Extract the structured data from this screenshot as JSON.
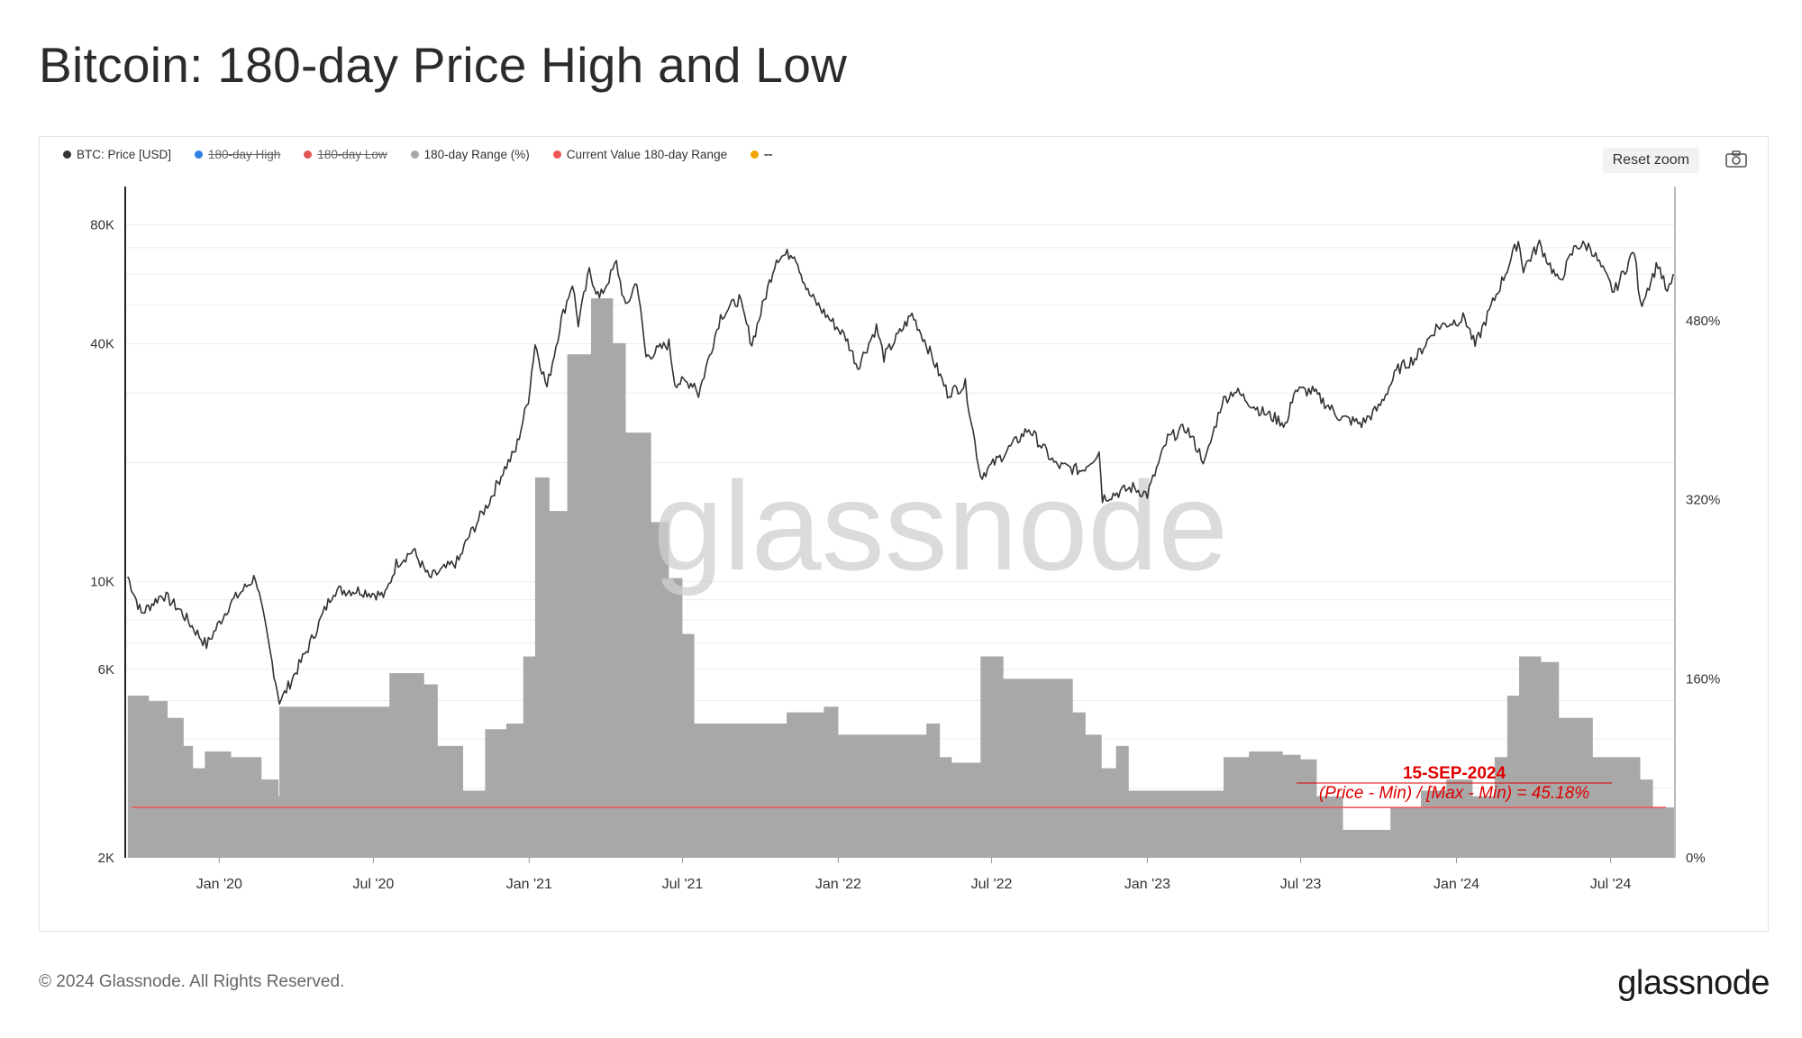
{
  "title": "Bitcoin: 180-day Price High and Low",
  "legend": [
    {
      "label": "BTC: Price [USD]",
      "color": "#333333",
      "struck": false
    },
    {
      "label": "180-day High",
      "color": "#2d7fe0",
      "struck": true
    },
    {
      "label": "180-day Low",
      "color": "#e05555",
      "struck": true
    },
    {
      "label": "180-day Range (%)",
      "color": "#a8a8a8",
      "struck": false
    },
    {
      "label": "Current Value 180-day Range",
      "color": "#ee5555",
      "struck": false
    },
    {
      "label": "--",
      "color": "#f0a500",
      "struck": true
    }
  ],
  "toolbar": {
    "reset_zoom": "Reset zoom"
  },
  "icons": {
    "camera": "camera-icon"
  },
  "watermark": "glassnode",
  "annotation": {
    "date": "15-SEP-2024",
    "formula": "(Price -  Min) / [Max - Min) = 45.18%",
    "color": "#e00000"
  },
  "footer": {
    "copyright": "© 2024 Glassnode. All Rights Reserved.",
    "logo": "glassnode"
  },
  "chart_data": {
    "type": "line",
    "x_ticks": [
      "Jan '20",
      "Jul '20",
      "Jan '21",
      "Jul '21",
      "Jan '22",
      "Jul '22",
      "Jan '23",
      "Jul '23",
      "Jan '24",
      "Jul '24"
    ],
    "y_left": {
      "scale": "log",
      "ticks": [
        "2K",
        "6K",
        "10K",
        "40K",
        "80K"
      ],
      "tick_values": [
        2000,
        6000,
        10000,
        40000,
        80000
      ],
      "range": [
        2000,
        100000
      ]
    },
    "y_right": {
      "ticks": [
        "0%",
        "160%",
        "320%",
        "480%"
      ],
      "tick_values": [
        0,
        160,
        320,
        480
      ],
      "range": [
        0,
        600
      ]
    },
    "series": [
      {
        "name": "BTC: Price [USD]",
        "type": "line",
        "color": "#333333",
        "axis": "left",
        "points": [
          [
            "2019-09-15",
            10300
          ],
          [
            "2019-10-01",
            8300
          ],
          [
            "2019-10-26",
            9300
          ],
          [
            "2019-11-15",
            8500
          ],
          [
            "2019-12-17",
            6900
          ],
          [
            "2020-01-14",
            8800
          ],
          [
            "2020-02-13",
            10300
          ],
          [
            "2020-03-12",
            5000
          ],
          [
            "2020-03-16",
            5100
          ],
          [
            "2020-04-15",
            6800
          ],
          [
            "2020-05-15",
            9500
          ],
          [
            "2020-06-15",
            9500
          ],
          [
            "2020-07-15",
            9200
          ],
          [
            "2020-07-28",
            11100
          ],
          [
            "2020-08-17",
            12000
          ],
          [
            "2020-09-05",
            10200
          ],
          [
            "2020-10-10",
            11300
          ],
          [
            "2020-10-20",
            12800
          ],
          [
            "2020-11-15",
            16000
          ],
          [
            "2020-12-01",
            19000
          ],
          [
            "2020-12-16",
            21500
          ],
          [
            "2020-12-31",
            29000
          ],
          [
            "2021-01-08",
            40000
          ],
          [
            "2021-01-22",
            31000
          ],
          [
            "2021-02-08",
            46000
          ],
          [
            "2021-02-21",
            57000
          ],
          [
            "2021-02-28",
            45000
          ],
          [
            "2021-03-13",
            61000
          ],
          [
            "2021-03-25",
            52000
          ],
          [
            "2021-04-14",
            64000
          ],
          [
            "2021-04-25",
            49000
          ],
          [
            "2021-05-08",
            58000
          ],
          [
            "2021-05-19",
            37000
          ],
          [
            "2021-06-15",
            40000
          ],
          [
            "2021-06-22",
            32000
          ],
          [
            "2021-07-15",
            31800
          ],
          [
            "2021-07-20",
            29800
          ],
          [
            "2021-08-15",
            47000
          ],
          [
            "2021-09-06",
            52000
          ],
          [
            "2021-09-21",
            40000
          ],
          [
            "2021-10-20",
            66000
          ],
          [
            "2021-11-10",
            68000
          ],
          [
            "2021-11-26",
            54000
          ],
          [
            "2021-12-15",
            48000
          ],
          [
            "2022-01-10",
            41500
          ],
          [
            "2022-01-24",
            35000
          ],
          [
            "2022-02-15",
            44000
          ],
          [
            "2022-02-24",
            37000
          ],
          [
            "2022-03-29",
            47500
          ],
          [
            "2022-04-15",
            40000
          ],
          [
            "2022-05-10",
            30000
          ],
          [
            "2022-05-31",
            31500
          ],
          [
            "2022-06-18",
            18500
          ],
          [
            "2022-07-15",
            21000
          ],
          [
            "2022-08-14",
            24400
          ],
          [
            "2022-09-15",
            19700
          ],
          [
            "2022-10-15",
            19100
          ],
          [
            "2022-11-05",
            21300
          ],
          [
            "2022-11-09",
            16300
          ],
          [
            "2022-12-15",
            17300
          ],
          [
            "2023-01-01",
            16600
          ],
          [
            "2023-01-25",
            23000
          ],
          [
            "2023-02-16",
            24500
          ],
          [
            "2023-03-10",
            20000
          ],
          [
            "2023-03-30",
            28500
          ],
          [
            "2023-04-14",
            30500
          ],
          [
            "2023-05-15",
            27000
          ],
          [
            "2023-06-15",
            25000
          ],
          [
            "2023-06-23",
            30500
          ],
          [
            "2023-07-15",
            30300
          ],
          [
            "2023-08-17",
            26000
          ],
          [
            "2023-09-11",
            25100
          ],
          [
            "2023-10-01",
            27500
          ],
          [
            "2023-10-24",
            34500
          ],
          [
            "2023-11-15",
            37000
          ],
          [
            "2023-12-08",
            44000
          ],
          [
            "2024-01-11",
            46500
          ],
          [
            "2024-01-23",
            39500
          ],
          [
            "2024-02-15",
            52000
          ],
          [
            "2024-03-01",
            62000
          ],
          [
            "2024-03-14",
            73000
          ],
          [
            "2024-03-20",
            62000
          ],
          [
            "2024-04-08",
            71500
          ],
          [
            "2024-05-01",
            57000
          ],
          [
            "2024-05-21",
            71000
          ],
          [
            "2024-06-07",
            70500
          ],
          [
            "2024-07-05",
            54000
          ],
          [
            "2024-07-29",
            69000
          ],
          [
            "2024-08-05",
            50000
          ],
          [
            "2024-08-26",
            64000
          ],
          [
            "2024-09-06",
            53500
          ],
          [
            "2024-09-15",
            60000
          ]
        ]
      },
      {
        "name": "180-day Range (%)",
        "type": "area",
        "color": "#a8a8a8",
        "axis": "right",
        "points": [
          [
            "2019-09-15",
            145
          ],
          [
            "2019-10-10",
            140
          ],
          [
            "2019-11-01",
            125
          ],
          [
            "2019-11-20",
            100
          ],
          [
            "2019-12-01",
            80
          ],
          [
            "2019-12-15",
            95
          ],
          [
            "2020-01-15",
            90
          ],
          [
            "2020-02-20",
            70
          ],
          [
            "2020-03-11",
            55
          ],
          [
            "2020-03-12",
            135
          ],
          [
            "2020-05-15",
            135
          ],
          [
            "2020-07-05",
            135
          ],
          [
            "2020-07-20",
            165
          ],
          [
            "2020-08-30",
            155
          ],
          [
            "2020-09-15",
            100
          ],
          [
            "2020-10-15",
            60
          ],
          [
            "2020-11-10",
            115
          ],
          [
            "2020-12-05",
            120
          ],
          [
            "2020-12-25",
            180
          ],
          [
            "2021-01-08",
            340
          ],
          [
            "2021-01-25",
            310
          ],
          [
            "2021-02-15",
            450
          ],
          [
            "2021-03-15",
            500
          ],
          [
            "2021-04-10",
            460
          ],
          [
            "2021-04-25",
            380
          ],
          [
            "2021-05-25",
            300
          ],
          [
            "2021-06-15",
            250
          ],
          [
            "2021-07-01",
            200
          ],
          [
            "2021-07-15",
            120
          ],
          [
            "2021-08-15",
            120
          ],
          [
            "2021-10-15",
            120
          ],
          [
            "2021-11-01",
            130
          ],
          [
            "2021-12-15",
            135
          ],
          [
            "2022-01-01",
            110
          ],
          [
            "2022-02-15",
            110
          ],
          [
            "2022-04-01",
            110
          ],
          [
            "2022-04-15",
            120
          ],
          [
            "2022-05-01",
            90
          ],
          [
            "2022-05-15",
            85
          ],
          [
            "2022-06-16",
            85
          ],
          [
            "2022-06-18",
            180
          ],
          [
            "2022-07-15",
            160
          ],
          [
            "2022-09-15",
            160
          ],
          [
            "2022-10-05",
            130
          ],
          [
            "2022-10-20",
            110
          ],
          [
            "2022-11-08",
            80
          ],
          [
            "2022-11-25",
            100
          ],
          [
            "2022-12-10",
            60
          ],
          [
            "2023-03-01",
            60
          ],
          [
            "2023-04-01",
            90
          ],
          [
            "2023-05-01",
            95
          ],
          [
            "2023-06-10",
            92
          ],
          [
            "2023-07-01",
            88
          ],
          [
            "2023-07-20",
            55
          ],
          [
            "2023-08-20",
            25
          ],
          [
            "2023-09-20",
            25
          ],
          [
            "2023-10-15",
            45
          ],
          [
            "2023-11-20",
            60
          ],
          [
            "2023-12-20",
            70
          ],
          [
            "2024-01-20",
            55
          ],
          [
            "2024-02-15",
            90
          ],
          [
            "2024-03-01",
            145
          ],
          [
            "2024-03-15",
            180
          ],
          [
            "2024-04-10",
            175
          ],
          [
            "2024-05-01",
            125
          ],
          [
            "2024-06-10",
            90
          ],
          [
            "2024-07-20",
            90
          ],
          [
            "2024-08-05",
            70
          ],
          [
            "2024-08-20",
            45
          ],
          [
            "2024-09-15",
            45
          ]
        ]
      },
      {
        "name": "Current Value 180-day Range",
        "type": "hline",
        "color": "#ee5555",
        "axis": "right",
        "value": 45
      }
    ]
  }
}
